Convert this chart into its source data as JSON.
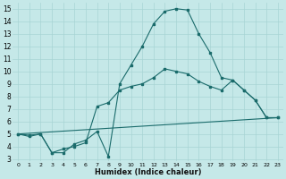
{
  "xlabel": "Humidex (Indice chaleur)",
  "xlim": [
    -0.5,
    23.5
  ],
  "ylim": [
    2.8,
    15.5
  ],
  "yticks": [
    3,
    4,
    5,
    6,
    7,
    8,
    9,
    10,
    11,
    12,
    13,
    14,
    15
  ],
  "xticks": [
    0,
    1,
    2,
    3,
    4,
    5,
    6,
    7,
    8,
    9,
    10,
    11,
    12,
    13,
    14,
    15,
    16,
    17,
    18,
    19,
    20,
    21,
    22,
    23
  ],
  "bg_color": "#c5e8e8",
  "grid_color": "#a8d4d4",
  "line_color": "#1a6b6b",
  "curve1_x": [
    0,
    1,
    2,
    3,
    4,
    5,
    6,
    7,
    8,
    9,
    10,
    11,
    12,
    13,
    14,
    15,
    16,
    17,
    18,
    19,
    20,
    21,
    22,
    23
  ],
  "curve1_y": [
    5.0,
    4.8,
    5.0,
    3.5,
    3.5,
    4.2,
    4.5,
    5.2,
    3.2,
    9.0,
    10.5,
    12.0,
    13.8,
    14.8,
    15.0,
    14.9,
    13.0,
    11.5,
    9.5,
    9.3,
    8.5,
    7.7,
    6.3,
    6.3
  ],
  "curve2_x": [
    0,
    1,
    2,
    3,
    4,
    5,
    6,
    7,
    8,
    9,
    10,
    11,
    12,
    13,
    14,
    15,
    16,
    17,
    18,
    19,
    20,
    21,
    22,
    23
  ],
  "curve2_y": [
    5.0,
    4.9,
    5.0,
    3.5,
    3.8,
    4.0,
    4.3,
    7.2,
    7.5,
    8.5,
    8.8,
    9.0,
    9.5,
    10.2,
    10.0,
    9.8,
    9.2,
    8.8,
    8.5,
    9.3,
    8.5,
    7.7,
    6.3,
    6.3
  ],
  "curve3_x": [
    0,
    23
  ],
  "curve3_y": [
    5.0,
    6.3
  ]
}
